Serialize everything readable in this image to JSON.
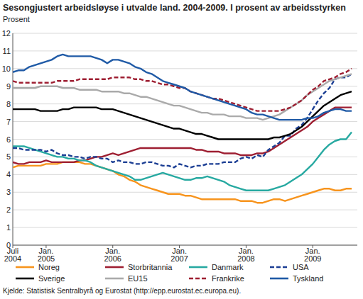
{
  "chart_data": {
    "type": "line",
    "title": "Sesongjustert arbeidsløyse i utvalde land. 2004-2009. I prosent av arbeidsstyrken",
    "y_label": "Prosent",
    "source": "Kjelde: Statistisk Sentralbyrå og Eurostat (http://epp.eurostat.ec.europa.eu).",
    "categories": [
      "Juli 2004",
      null,
      null,
      null,
      null,
      null,
      "Jan. 2005",
      null,
      null,
      null,
      null,
      null,
      null,
      null,
      null,
      null,
      null,
      null,
      "Jan. 2006",
      null,
      null,
      null,
      null,
      null,
      null,
      null,
      null,
      null,
      null,
      null,
      "Jan. 2007",
      null,
      null,
      null,
      null,
      null,
      null,
      null,
      null,
      null,
      null,
      null,
      "Jan. 2008",
      null,
      null,
      null,
      null,
      null,
      null,
      null,
      null,
      null,
      null,
      null,
      "Jan. 2009",
      null,
      null,
      null,
      null,
      null,
      null,
      null
    ],
    "ylim": [
      0,
      12
    ],
    "yticks": [
      0,
      1,
      2,
      3,
      4,
      5,
      6,
      7,
      8,
      9,
      10,
      11,
      12
    ],
    "grid": true,
    "legend": "bottom",
    "series": [
      {
        "name": "Noreg",
        "color": "#f7941d",
        "line_style": "solid",
        "values": [
          4.4,
          4.5,
          4.5,
          4.5,
          4.5,
          4.5,
          4.6,
          4.6,
          4.6,
          4.7,
          4.7,
          4.7,
          4.7,
          4.6,
          4.6,
          4.5,
          4.4,
          4.3,
          4.2,
          4.0,
          3.9,
          3.7,
          3.6,
          3.4,
          3.3,
          3.2,
          3.1,
          3.0,
          2.9,
          2.9,
          2.9,
          2.8,
          2.8,
          2.7,
          2.6,
          2.6,
          2.6,
          2.6,
          2.6,
          2.6,
          2.6,
          2.5,
          2.5,
          2.5,
          2.4,
          2.4,
          2.5,
          2.6,
          2.6,
          2.5,
          2.6,
          2.7,
          2.8,
          2.9,
          3.0,
          3.1,
          3.2,
          3.2,
          3.1,
          3.1,
          3.2,
          3.2
        ]
      },
      {
        "name": "Storbritannia",
        "color": "#9e1f32",
        "line_style": "solid",
        "values": [
          4.7,
          4.6,
          4.6,
          4.7,
          4.7,
          4.7,
          4.8,
          4.7,
          4.7,
          4.7,
          4.7,
          4.7,
          4.8,
          4.8,
          4.9,
          5.0,
          5.0,
          5.1,
          5.2,
          5.1,
          5.2,
          5.3,
          5.4,
          5.5,
          5.5,
          5.5,
          5.5,
          5.5,
          5.5,
          5.5,
          5.5,
          5.5,
          5.5,
          5.4,
          5.4,
          5.3,
          5.3,
          5.3,
          5.2,
          5.2,
          5.2,
          5.1,
          5.1,
          5.1,
          5.2,
          5.2,
          5.3,
          5.5,
          5.7,
          5.9,
          6.1,
          6.3,
          6.5,
          6.7,
          7.0,
          7.2,
          7.4,
          7.6,
          7.8,
          7.8,
          7.8,
          7.8
        ]
      },
      {
        "name": "Danmark",
        "color": "#27a9a1",
        "line_style": "solid",
        "values": [
          5.6,
          5.6,
          5.6,
          5.5,
          5.4,
          5.3,
          5.2,
          5.1,
          5.0,
          5.0,
          4.9,
          4.9,
          4.8,
          4.8,
          4.7,
          4.5,
          4.4,
          4.3,
          4.2,
          4.1,
          4.0,
          3.9,
          3.7,
          3.7,
          3.8,
          3.9,
          4.0,
          4.1,
          4.0,
          3.9,
          3.8,
          3.7,
          3.7,
          3.8,
          3.8,
          3.9,
          3.8,
          3.7,
          3.6,
          3.4,
          3.3,
          3.2,
          3.1,
          3.1,
          3.1,
          3.1,
          3.1,
          3.2,
          3.3,
          3.4,
          3.6,
          3.8,
          4.0,
          4.3,
          4.6,
          5.0,
          5.4,
          5.7,
          5.9,
          6.0,
          6.0,
          6.4
        ]
      },
      {
        "name": "USA",
        "color": "#1c3f94",
        "line_style": "dashed",
        "values": [
          5.5,
          5.5,
          5.4,
          5.4,
          5.4,
          5.4,
          5.3,
          5.4,
          5.2,
          5.1,
          5.1,
          5.0,
          5.0,
          4.9,
          5.0,
          5.0,
          4.9,
          4.9,
          4.7,
          4.8,
          4.7,
          4.7,
          4.6,
          4.6,
          4.7,
          4.7,
          4.6,
          4.5,
          4.5,
          4.4,
          4.6,
          4.5,
          4.4,
          4.5,
          4.5,
          4.6,
          4.6,
          4.6,
          4.7,
          4.7,
          4.7,
          4.9,
          5.0,
          4.9,
          5.1,
          5.0,
          5.4,
          5.6,
          5.8,
          6.2,
          6.2,
          6.6,
          6.8,
          7.2,
          7.7,
          8.2,
          8.6,
          8.9,
          9.4,
          9.5,
          9.5,
          9.7
        ]
      },
      {
        "name": "Sverige",
        "color": "#000000",
        "line_style": "solid",
        "values": [
          7.7,
          7.7,
          7.7,
          7.7,
          7.7,
          7.6,
          7.6,
          7.6,
          7.6,
          7.7,
          7.7,
          7.8,
          7.8,
          7.8,
          7.8,
          7.8,
          7.7,
          7.7,
          7.7,
          7.6,
          7.5,
          7.4,
          7.3,
          7.2,
          7.1,
          7.0,
          6.9,
          6.8,
          6.7,
          6.6,
          6.6,
          6.5,
          6.4,
          6.3,
          6.3,
          6.2,
          6.1,
          6.0,
          6.0,
          6.0,
          6.0,
          6.0,
          6.0,
          6.0,
          6.0,
          6.0,
          6.0,
          6.1,
          6.1,
          6.2,
          6.3,
          6.5,
          6.7,
          7.0,
          7.3,
          7.6,
          7.9,
          8.1,
          8.3,
          8.5,
          8.6,
          8.7
        ]
      },
      {
        "name": "EU15",
        "color": "#aaaaaa",
        "line_style": "solid",
        "values": [
          8.9,
          8.9,
          8.9,
          8.9,
          8.9,
          9.0,
          9.0,
          9.0,
          9.0,
          8.9,
          8.9,
          8.9,
          8.8,
          8.8,
          8.8,
          8.8,
          8.7,
          8.7,
          8.7,
          8.7,
          8.6,
          8.6,
          8.5,
          8.4,
          8.4,
          8.3,
          8.2,
          8.1,
          8.0,
          7.9,
          7.9,
          7.8,
          7.7,
          7.6,
          7.5,
          7.5,
          7.4,
          7.4,
          7.4,
          7.3,
          7.3,
          7.3,
          7.2,
          7.2,
          7.2,
          7.1,
          7.2,
          7.3,
          7.4,
          7.6,
          7.8,
          8.0,
          8.2,
          8.5,
          8.7,
          8.9,
          9.1,
          9.3,
          9.4,
          9.5,
          9.6,
          9.7
        ]
      },
      {
        "name": "Frankrike",
        "color": "#9e1f32",
        "line_style": "dashed",
        "values": [
          9.3,
          9.2,
          9.2,
          9.2,
          9.2,
          9.2,
          9.2,
          9.2,
          9.3,
          9.3,
          9.3,
          9.3,
          9.4,
          9.4,
          9.4,
          9.4,
          9.4,
          9.4,
          9.5,
          9.5,
          9.5,
          9.5,
          9.4,
          9.4,
          9.3,
          9.3,
          9.2,
          9.1,
          9.1,
          9.0,
          8.9,
          8.9,
          8.7,
          8.6,
          8.5,
          8.4,
          8.3,
          8.3,
          8.2,
          8.1,
          8.0,
          7.9,
          7.8,
          7.7,
          7.6,
          7.6,
          7.6,
          7.6,
          7.6,
          7.7,
          7.8,
          8.0,
          8.2,
          8.5,
          8.8,
          9.0,
          9.3,
          9.4,
          9.5,
          9.7,
          9.8,
          10.0
        ]
      },
      {
        "name": "Tyskland",
        "color": "#1f5aa6",
        "line_style": "solid",
        "values": [
          9.8,
          9.9,
          9.9,
          10.1,
          10.2,
          10.3,
          10.4,
          10.5,
          10.7,
          10.8,
          10.7,
          10.7,
          10.7,
          10.7,
          10.7,
          10.6,
          10.5,
          10.3,
          10.5,
          10.5,
          10.4,
          10.3,
          10.1,
          10.0,
          9.8,
          9.7,
          9.5,
          9.3,
          9.2,
          9.1,
          9.0,
          8.9,
          8.7,
          8.6,
          8.5,
          8.4,
          8.3,
          8.2,
          8.1,
          8.0,
          7.9,
          7.8,
          7.7,
          7.5,
          7.4,
          7.4,
          7.3,
          7.2,
          7.1,
          7.1,
          7.1,
          7.1,
          7.1,
          7.2,
          7.2,
          7.3,
          7.5,
          7.6,
          7.7,
          7.7,
          7.6,
          7.6
        ]
      }
    ]
  }
}
